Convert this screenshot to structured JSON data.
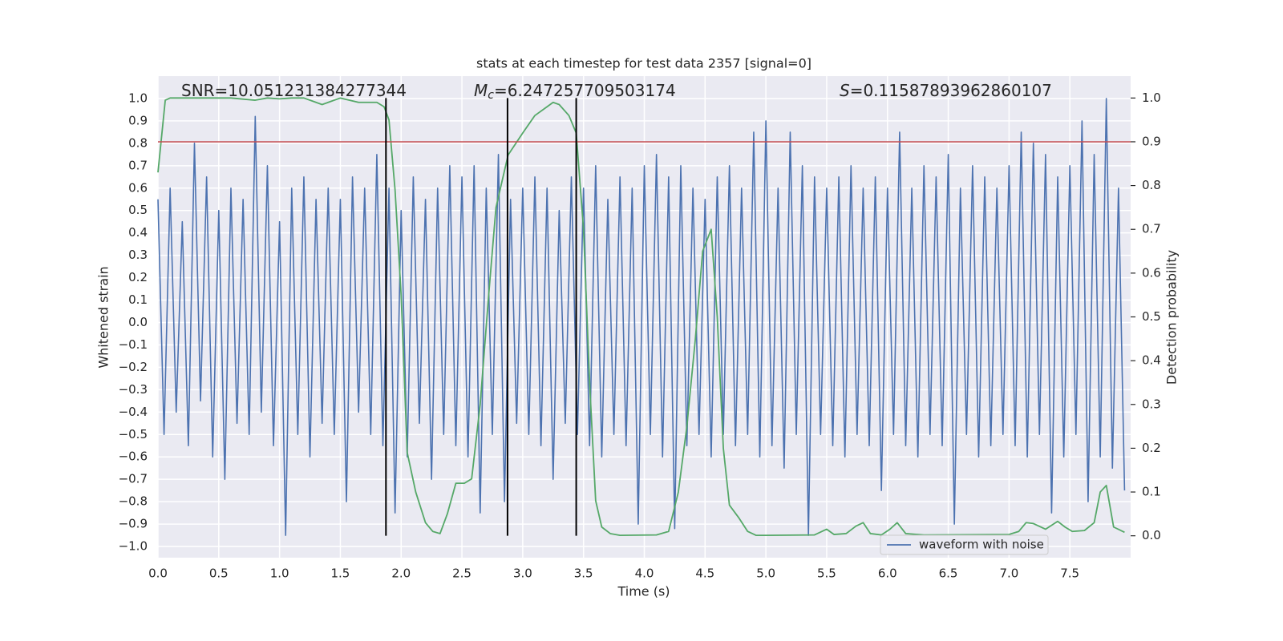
{
  "chart_data": {
    "type": "line",
    "title": "stats at each timestep for test data 2357 [signal=0]",
    "x_label": "Time (s)",
    "y_label": "Whitened strain",
    "y2_label": "Detection probability",
    "grid": true,
    "legend": "lower right",
    "xlim": [
      0,
      8
    ],
    "ylim": [
      -1.05,
      1.1
    ],
    "y2lim": [
      -0.05,
      1.05
    ],
    "xticks": [
      {
        "value": 0,
        "label": "0.0"
      },
      {
        "value": 0.5,
        "label": "0.5"
      },
      {
        "value": 1,
        "label": "1.0"
      },
      {
        "value": 1.5,
        "label": "1.5"
      },
      {
        "value": 2,
        "label": "2.0"
      },
      {
        "value": 2.5,
        "label": "2.5"
      },
      {
        "value": 3,
        "label": "3.0"
      },
      {
        "value": 3.5,
        "label": "3.5"
      },
      {
        "value": 4,
        "label": "4.0"
      },
      {
        "value": 4.5,
        "label": "4.5"
      },
      {
        "value": 5,
        "label": "5.0"
      },
      {
        "value": 5.5,
        "label": "5.5"
      },
      {
        "value": 6,
        "label": "6.0"
      },
      {
        "value": 6.5,
        "label": "6.5"
      },
      {
        "value": 7,
        "label": "7.0"
      },
      {
        "value": 7.5,
        "label": "7.5"
      }
    ],
    "yticks": [
      {
        "value": -1,
        "label": "−1.0"
      },
      {
        "value": -0.9,
        "label": "−0.9"
      },
      {
        "value": -0.8,
        "label": "−0.8"
      },
      {
        "value": -0.7,
        "label": "−0.7"
      },
      {
        "value": -0.6,
        "label": "−0.6"
      },
      {
        "value": -0.5,
        "label": "−0.5"
      },
      {
        "value": -0.4,
        "label": "−0.4"
      },
      {
        "value": -0.3,
        "label": "−0.3"
      },
      {
        "value": -0.2,
        "label": "−0.2"
      },
      {
        "value": -0.1,
        "label": "−0.1"
      },
      {
        "value": 0,
        "label": "0.0"
      },
      {
        "value": 0.1,
        "label": "0.1"
      },
      {
        "value": 0.2,
        "label": "0.2"
      },
      {
        "value": 0.3,
        "label": "0.3"
      },
      {
        "value": 0.4,
        "label": "0.4"
      },
      {
        "value": 0.5,
        "label": "0.5"
      },
      {
        "value": 0.6,
        "label": "0.6"
      },
      {
        "value": 0.7,
        "label": "0.7"
      },
      {
        "value": 0.8,
        "label": "0.8"
      },
      {
        "value": 0.9,
        "label": "0.9"
      },
      {
        "value": 1,
        "label": "1.0"
      }
    ],
    "y2ticks": [
      {
        "value": 0,
        "label": "0.0"
      },
      {
        "value": 0.1,
        "label": "0.1"
      },
      {
        "value": 0.2,
        "label": "0.2"
      },
      {
        "value": 0.3,
        "label": "0.3"
      },
      {
        "value": 0.4,
        "label": "0.4"
      },
      {
        "value": 0.5,
        "label": "0.5"
      },
      {
        "value": 0.6,
        "label": "0.6"
      },
      {
        "value": 0.7,
        "label": "0.7"
      },
      {
        "value": 0.8,
        "label": "0.8"
      },
      {
        "value": 0.9,
        "label": "0.9"
      },
      {
        "value": 1,
        "label": "1.0"
      }
    ],
    "annotations": [
      {
        "text": "SNR=10.051231384277344"
      },
      {
        "symbol": "M",
        "subscript": "c",
        "text": "=6.247257709503174"
      },
      {
        "symbol": "S",
        "text": "=0.11587893962860107"
      }
    ],
    "hline": {
      "value": 0.9,
      "axis": "y2",
      "color": "#c44e52"
    },
    "vlines": {
      "x": [
        1.875,
        2.875,
        3.44
      ],
      "y2range": [
        0,
        1
      ],
      "color": "#000000"
    },
    "series": [
      {
        "name": "waveform with noise",
        "color": "#4c72b0",
        "axis": "y",
        "x": [
          0,
          0.05,
          0.1,
          0.15,
          0.2,
          0.25,
          0.3,
          0.35,
          0.4,
          0.45,
          0.5,
          0.55,
          0.6,
          0.65,
          0.7,
          0.75,
          0.8,
          0.85,
          0.9,
          0.95,
          1,
          1.05,
          1.1,
          1.15,
          1.2,
          1.25,
          1.3,
          1.35,
          1.4,
          1.45,
          1.5,
          1.55,
          1.6,
          1.65,
          1.7,
          1.75,
          1.8,
          1.85,
          1.9,
          1.95,
          2,
          2.05,
          2.1,
          2.15,
          2.2,
          2.25,
          2.3,
          2.35,
          2.4,
          2.45,
          2.5,
          2.55,
          2.6,
          2.65,
          2.7,
          2.75,
          2.8,
          2.85,
          2.9,
          2.95,
          3,
          3.05,
          3.1,
          3.15,
          3.2,
          3.25,
          3.3,
          3.35,
          3.4,
          3.45,
          3.5,
          3.55,
          3.6,
          3.65,
          3.7,
          3.75,
          3.8,
          3.85,
          3.9,
          3.95,
          4,
          4.05,
          4.1,
          4.15,
          4.2,
          4.25,
          4.3,
          4.35,
          4.4,
          4.45,
          4.5,
          4.55,
          4.6,
          4.65,
          4.7,
          4.75,
          4.8,
          4.85,
          4.9,
          4.95,
          5,
          5.05,
          5.1,
          5.15,
          5.2,
          5.25,
          5.3,
          5.35,
          5.4,
          5.45,
          5.5,
          5.55,
          5.6,
          5.65,
          5.7,
          5.75,
          5.8,
          5.85,
          5.9,
          5.95,
          6,
          6.05,
          6.1,
          6.15,
          6.2,
          6.25,
          6.3,
          6.35,
          6.4,
          6.45,
          6.5,
          6.55,
          6.6,
          6.65,
          6.7,
          6.75,
          6.8,
          6.85,
          6.9,
          6.95,
          7,
          7.05,
          7.1,
          7.15,
          7.2,
          7.25,
          7.3,
          7.35,
          7.4,
          7.45,
          7.5,
          7.55,
          7.6,
          7.65,
          7.7,
          7.75,
          7.8,
          7.85,
          7.9,
          7.95
        ],
        "values": [
          0.55,
          -0.5,
          0.6,
          -0.4,
          0.45,
          -0.55,
          0.8,
          -0.35,
          0.65,
          -0.6,
          0.5,
          -0.7,
          0.6,
          -0.45,
          0.55,
          -0.5,
          0.92,
          -0.4,
          0.7,
          -0.55,
          0.45,
          -0.95,
          0.6,
          -0.5,
          0.65,
          -0.6,
          0.55,
          -0.45,
          0.6,
          -0.5,
          0.55,
          -0.8,
          0.65,
          -0.4,
          0.6,
          -0.5,
          0.75,
          -0.55,
          0.6,
          -0.85,
          0.5,
          -0.6,
          0.65,
          -0.45,
          0.55,
          -0.7,
          0.6,
          -0.5,
          0.7,
          -0.55,
          0.65,
          -0.6,
          0.7,
          -0.85,
          0.6,
          -0.5,
          0.75,
          -0.8,
          0.55,
          -0.45,
          0.6,
          -0.5,
          0.65,
          -0.55,
          0.6,
          -0.7,
          0.5,
          -0.45,
          0.65,
          -0.5,
          0.6,
          -0.55,
          0.7,
          -0.6,
          0.55,
          -0.5,
          0.65,
          -0.55,
          0.6,
          -0.9,
          0.7,
          -0.5,
          0.75,
          -0.6,
          0.65,
          -0.92,
          0.7,
          -0.55,
          0.6,
          -0.5,
          0.55,
          -0.6,
          0.65,
          -0.5,
          0.7,
          -0.55,
          0.6,
          -0.5,
          0.85,
          -0.6,
          0.9,
          -0.55,
          0.6,
          -0.65,
          0.85,
          -0.5,
          0.7,
          -0.95,
          0.65,
          -0.5,
          0.6,
          -0.55,
          0.65,
          -0.6,
          0.7,
          -0.5,
          0.6,
          -0.55,
          0.65,
          -0.75,
          0.6,
          -0.5,
          0.85,
          -0.55,
          0.6,
          -0.6,
          0.7,
          -0.5,
          0.65,
          -0.55,
          0.75,
          -0.9,
          0.6,
          -0.5,
          0.7,
          -0.6,
          0.65,
          -0.55,
          0.6,
          -0.5,
          0.7,
          -0.55,
          0.85,
          -0.6,
          0.8,
          -0.5,
          0.75,
          -0.85,
          0.65,
          -0.6,
          0.7,
          -0.5,
          0.9,
          -0.8,
          0.75,
          -0.6,
          1.0,
          -0.65,
          0.6,
          -0.75
        ]
      },
      {
        "color": "#55a868",
        "axis": "y2",
        "x": [
          0,
          0.06,
          0.1,
          0.3,
          0.6,
          0.8,
          0.9,
          1,
          1.1,
          1.2,
          1.3,
          1.35,
          1.4,
          1.5,
          1.65,
          1.8,
          1.86,
          1.9,
          1.95,
          2,
          2.05,
          2.12,
          2.2,
          2.26,
          2.32,
          2.38,
          2.45,
          2.52,
          2.58,
          2.65,
          2.72,
          2.78,
          2.88,
          3,
          3.1,
          3.2,
          3.25,
          3.3,
          3.38,
          3.44,
          3.5,
          3.55,
          3.6,
          3.65,
          3.72,
          3.8,
          4.1,
          4.2,
          4.28,
          4.35,
          4.42,
          4.48,
          4.55,
          4.6,
          4.65,
          4.7,
          4.78,
          4.85,
          4.92,
          5,
          5.4,
          5.5,
          5.56,
          5.66,
          5.74,
          5.8,
          5.86,
          5.95,
          6.02,
          6.08,
          6.15,
          6.3,
          7,
          7.08,
          7.14,
          7.2,
          7.3,
          7.4,
          7.46,
          7.52,
          7.62,
          7.7,
          7.75,
          7.8,
          7.86,
          7.95
        ],
        "values": [
          0.83,
          0.995,
          1,
          1,
          1,
          0.995,
          1,
          0.998,
          1,
          1,
          0.99,
          0.985,
          0.99,
          1,
          0.99,
          0.99,
          0.98,
          0.95,
          0.79,
          0.55,
          0.19,
          0.1,
          0.03,
          0.01,
          0.005,
          0.05,
          0.12,
          0.12,
          0.13,
          0.3,
          0.55,
          0.75,
          0.87,
          0.92,
          0.96,
          0.98,
          0.99,
          0.985,
          0.96,
          0.92,
          0.7,
          0.35,
          0.08,
          0.02,
          0.005,
          0.001,
          0.002,
          0.01,
          0.1,
          0.25,
          0.45,
          0.65,
          0.7,
          0.5,
          0.2,
          0.07,
          0.04,
          0.01,
          0.001,
          0.001,
          0.002,
          0.015,
          0.003,
          0.005,
          0.022,
          0.03,
          0.005,
          0.002,
          0.015,
          0.03,
          0.005,
          0.002,
          0.003,
          0.01,
          0.03,
          0.028,
          0.015,
          0.033,
          0.02,
          0.01,
          0.012,
          0.03,
          0.1,
          0.115,
          0.02,
          0.008
        ]
      }
    ]
  }
}
